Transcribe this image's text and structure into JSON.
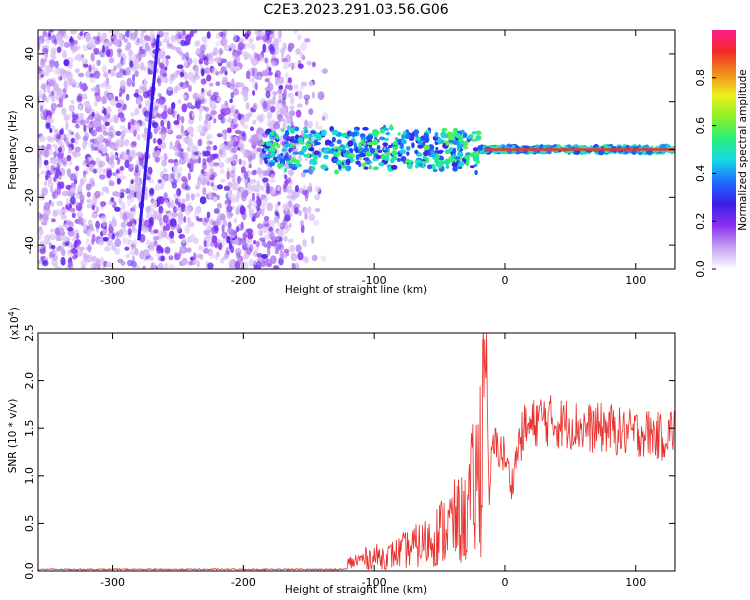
{
  "figure_title": "C2E3.2023.291.03.56.G06",
  "colorbar": {
    "label": "Normalized spectral amplitude",
    "ticks": [
      "0.0",
      "0.2",
      "0.4",
      "0.6",
      "0.8"
    ],
    "range": [
      0,
      1
    ],
    "colors": [
      "#ffffff",
      "#c4a0f0",
      "#8a30f0",
      "#3a1ee8",
      "#1e6cff",
      "#14d8e8",
      "#28f07a",
      "#8cf028",
      "#ecef1c",
      "#f28c1c",
      "#f22a28",
      "#ff1c8c"
    ]
  },
  "chart_data": [
    {
      "type": "heatmap",
      "title": "",
      "xlabel": "Height of straight line (km)",
      "ylabel": "Frequency (Hz)",
      "xlim": [
        -357,
        130
      ],
      "ylim": [
        -50,
        50
      ],
      "xticks": [
        "-300",
        "-200",
        "-100",
        "0",
        "100"
      ],
      "yticks": [
        "-40",
        "-20",
        "0",
        "20",
        "40"
      ],
      "description_regions": {
        "noise_region_x": [
          -357,
          -135
        ],
        "signal_band_x": [
          -185,
          130
        ],
        "signal_center_freq": 0
      },
      "diagonal_streak": {
        "x": [
          -280,
          -265
        ],
        "y": [
          -38,
          48
        ]
      }
    },
    {
      "type": "line",
      "title": "",
      "xlabel": "Height of straight line (km)",
      "ylabel": "SNR (10 * v/v)",
      "y_multiplier_label": "(x10",
      "y_multiplier_exp": "4",
      "xlim": [
        -357,
        130
      ],
      "ylim": [
        0,
        2.5
      ],
      "xticks": [
        "-300",
        "-200",
        "-100",
        "0",
        "100"
      ],
      "yticks": [
        "0.0",
        "0.5",
        "1.0",
        "1.5",
        "2.0",
        "2.5"
      ],
      "color": "#e8302c",
      "series": [
        {
          "x": [
            -357,
            -300,
            -200,
            -150,
            -140,
            -130,
            -120,
            -110,
            -100,
            -90,
            -80,
            -70,
            -60,
            -50,
            -40,
            -30,
            -25,
            -20,
            -16,
            -14,
            -12,
            -10,
            -5,
            0,
            5,
            10,
            15,
            20,
            25,
            30,
            40,
            50,
            60,
            70,
            80,
            90,
            100,
            110,
            120,
            130
          ],
          "y": [
            0.01,
            0.01,
            0.01,
            0.02,
            0.04,
            0.05,
            0.08,
            0.12,
            0.15,
            0.15,
            0.2,
            0.25,
            0.3,
            0.4,
            0.5,
            0.55,
            0.8,
            1.0,
            2.0,
            2.5,
            0.6,
            1.3,
            1.3,
            1.2,
            0.9,
            1.3,
            1.5,
            1.5,
            1.6,
            1.6,
            1.55,
            1.55,
            1.5,
            1.5,
            1.5,
            1.45,
            1.45,
            1.45,
            1.4,
            1.5
          ]
        }
      ]
    }
  ]
}
